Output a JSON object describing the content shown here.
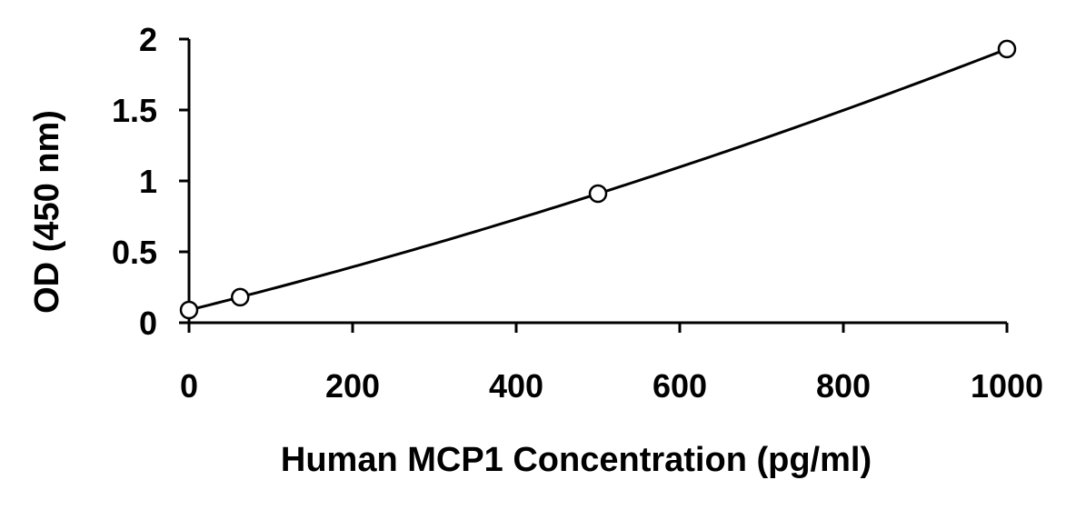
{
  "chart_data": {
    "type": "scatter",
    "title": "",
    "xlabel": "Human MCP1 Concentration (pg/ml)",
    "ylabel": "OD (450 nm)",
    "xlim": [
      0,
      1000
    ],
    "ylim": [
      0,
      2
    ],
    "x_ticks": [
      0,
      200,
      400,
      600,
      800,
      1000
    ],
    "x_tick_labels": [
      "0",
      "200",
      "400",
      "600",
      "800",
      "1000"
    ],
    "y_ticks": [
      0,
      0.5,
      1,
      1.5,
      2
    ],
    "y_tick_labels": [
      "0",
      "0.5",
      "1",
      "1.5",
      "2"
    ],
    "grid": false,
    "legend": "none",
    "series": [
      {
        "marker": "open-circle",
        "trendline": "smooth-curve",
        "points": [
          {
            "x": 0,
            "y": 0.09
          },
          {
            "x": 62.5,
            "y": 0.18
          },
          {
            "x": 500,
            "y": 0.91
          },
          {
            "x": 1000,
            "y": 1.93
          }
        ]
      }
    ],
    "colors": {
      "line": "#000000",
      "marker_stroke": "#000000",
      "marker_fill": "#ffffff"
    }
  }
}
